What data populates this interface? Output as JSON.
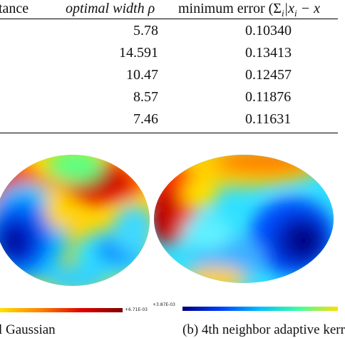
{
  "table": {
    "headers": {
      "distance": "tance",
      "width": "optimal width ρ",
      "error_prefix": "minimum error (Σ",
      "error_sub": "i",
      "error_suffix": "|x",
      "error_sub2": "i",
      "error_tail": " − x"
    },
    "rows": [
      {
        "width": "5.78",
        "error": "0.10340"
      },
      {
        "width": "14.591",
        "error": "0.13413"
      },
      {
        "width": "10.47",
        "error": "0.12457"
      },
      {
        "width": "8.57",
        "error": "0.11876"
      },
      {
        "width": "7.46",
        "error": "0.11631"
      }
    ]
  },
  "figures": {
    "left": {
      "colorbar_max_label": "+6.71E-03",
      "caption": "l Gaussian"
    },
    "right": {
      "colorbar_min_label": "+3.87E-03",
      "caption": "(b) 4th neighbor adaptive kerr"
    }
  }
}
